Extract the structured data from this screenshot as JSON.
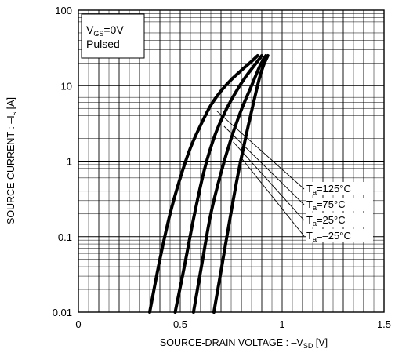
{
  "chart_data": {
    "type": "line",
    "title": "",
    "xlabel": "SOURCE-DRAIN VOLTAGE : –V",
    "xlabel_sub": "SD",
    "xlabel_unit": " [V]",
    "ylabel": "SOURCE CURRENT : –I",
    "ylabel_sub": "s",
    "ylabel_unit": " [A]",
    "xlim": [
      0,
      1.5
    ],
    "ylim": [
      0.01,
      100
    ],
    "yscale": "log",
    "grid": true,
    "x_ticks": [
      {
        "value": 0,
        "label": "0"
      },
      {
        "value": 0.5,
        "label": "0.5"
      },
      {
        "value": 1.0,
        "label": "1"
      },
      {
        "value": 1.5,
        "label": "1.5"
      }
    ],
    "y_ticks": [
      {
        "value": 0.01,
        "label": "0.01"
      },
      {
        "value": 0.1,
        "label": "0.1"
      },
      {
        "value": 1,
        "label": "1"
      },
      {
        "value": 10,
        "label": "10"
      },
      {
        "value": 100,
        "label": "100"
      }
    ],
    "condition_box": {
      "line1_main": "V",
      "line1_sub": "GS",
      "line1_rest": "=0V",
      "line2": "Pulsed"
    },
    "series": [
      {
        "name": "T",
        "name_sub": "a",
        "name_rest": "=125°C",
        "points": [
          [
            0.35,
            0.01
          ],
          [
            0.4,
            0.05
          ],
          [
            0.45,
            0.2
          ],
          [
            0.5,
            0.6
          ],
          [
            0.55,
            1.5
          ],
          [
            0.6,
            3
          ],
          [
            0.65,
            5.5
          ],
          [
            0.7,
            8.5
          ],
          [
            0.75,
            12
          ],
          [
            0.8,
            16
          ],
          [
            0.85,
            21
          ],
          [
            0.88,
            25
          ]
        ],
        "label_value": [
          0.68,
          4.6
        ]
      },
      {
        "name": "T",
        "name_sub": "a",
        "name_rest": "=75°C",
        "points": [
          [
            0.475,
            0.01
          ],
          [
            0.52,
            0.04
          ],
          [
            0.57,
            0.2
          ],
          [
            0.62,
            0.8
          ],
          [
            0.67,
            2.2
          ],
          [
            0.72,
            4.5
          ],
          [
            0.77,
            8
          ],
          [
            0.82,
            13
          ],
          [
            0.87,
            19.5
          ],
          [
            0.9,
            25
          ]
        ],
        "label_value": [
          0.715,
          2.9
        ]
      },
      {
        "name": "T",
        "name_sub": "a",
        "name_rest": "=25°C",
        "points": [
          [
            0.565,
            0.01
          ],
          [
            0.61,
            0.05
          ],
          [
            0.65,
            0.2
          ],
          [
            0.7,
            0.7
          ],
          [
            0.75,
            2
          ],
          [
            0.8,
            4.8
          ],
          [
            0.85,
            10
          ],
          [
            0.89,
            18
          ],
          [
            0.92,
            25
          ]
        ],
        "label_value": [
          0.76,
          1.8
        ]
      },
      {
        "name": "T",
        "name_sub": "a",
        "name_rest": "=–25°C",
        "points": [
          [
            0.665,
            0.01
          ],
          [
            0.7,
            0.035
          ],
          [
            0.74,
            0.15
          ],
          [
            0.78,
            0.6
          ],
          [
            0.82,
            2
          ],
          [
            0.86,
            6
          ],
          [
            0.89,
            13
          ],
          [
            0.91,
            19
          ],
          [
            0.93,
            25
          ]
        ],
        "label_value": [
          0.8,
          1.1
        ]
      }
    ]
  }
}
